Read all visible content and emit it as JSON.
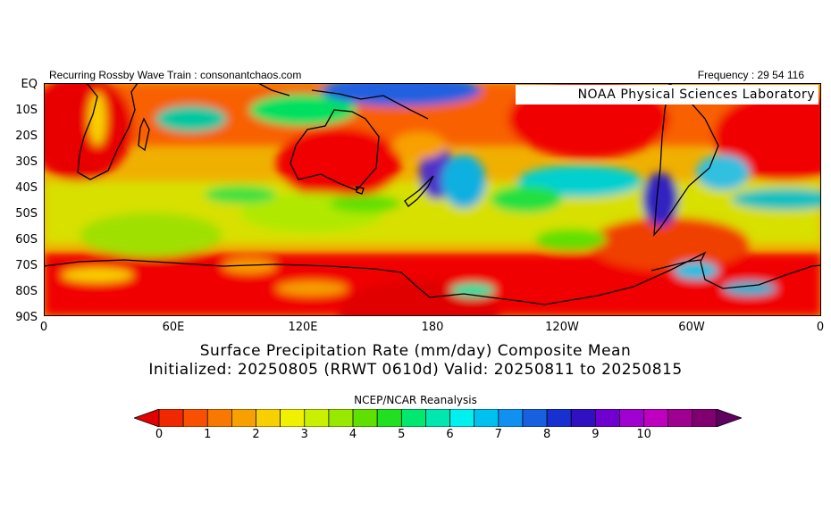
{
  "header": {
    "left": "Recurring Rossby Wave Train : consonantchaos.com",
    "right": "Frequency : 29 54 116"
  },
  "overlay_label": "NOAA Physical Sciences Laboratory",
  "map": {
    "lat_labels": [
      "EQ",
      "10S",
      "20S",
      "30S",
      "40S",
      "50S",
      "60S",
      "70S",
      "80S",
      "90S"
    ],
    "lon_labels": [
      "0",
      "60E",
      "120E",
      "180",
      "120W",
      "60W",
      "0"
    ],
    "domain": "Southern Hemisphere, 0 to 360 longitude, EQ to 90S"
  },
  "title": {
    "line1": "Surface Precipitation Rate (mm/day) Composite Mean",
    "line2": "Initialized: 20250805 (RRWT 0610d) Valid: 20250811 to 20250815"
  },
  "source": "NCEP/NCAR Reanalysis",
  "colorbar": {
    "tick_labels": [
      "0",
      "1",
      "2",
      "3",
      "4",
      "5",
      "6",
      "7",
      "8",
      "9",
      "10"
    ],
    "colors": [
      "#e00000",
      "#f02800",
      "#f85000",
      "#f87800",
      "#f8a000",
      "#f8d000",
      "#f0f000",
      "#c8f000",
      "#98e800",
      "#60e000",
      "#20e020",
      "#00e870",
      "#00e8b0",
      "#00f0f0",
      "#00c0f0",
      "#1090f0",
      "#1860e0",
      "#1830d0",
      "#3010c0",
      "#7000d0",
      "#a000d0",
      "#c000c0",
      "#a00090",
      "#800070",
      "#600060"
    ]
  }
}
